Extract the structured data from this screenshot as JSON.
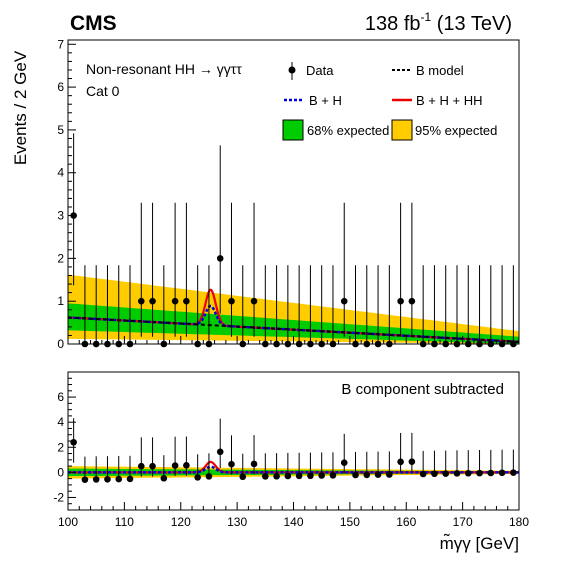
{
  "header": {
    "experiment": "CMS",
    "lumi_value": "138 fb",
    "lumi_exp": "-1",
    "energy": "(13 TeV)"
  },
  "annotations": {
    "process": "Non-resonant HH → γγττ",
    "category": "Cat 0",
    "lower_panel_label": "B component subtracted"
  },
  "axes": {
    "ylabel_upper": "Events / 2 GeV",
    "xlabel": "m̃γγ [GeV]",
    "xticks": [
      100,
      110,
      120,
      130,
      140,
      150,
      160,
      170,
      180
    ],
    "yticks_upper": [
      0,
      1,
      2,
      3,
      4,
      5,
      6,
      7
    ],
    "yticks_lower": [
      -2,
      0,
      2,
      4,
      6
    ]
  },
  "legend": {
    "data": "Data",
    "b_model": "B model",
    "b_h": "B + H",
    "b_h_hh": "B + H + HH",
    "band68": "68% expected",
    "band95": "95% expected"
  },
  "colors": {
    "band68": "#00cc00",
    "band95": "#ffcc00",
    "b_h": "#0000dd",
    "b_h_hh": "#ee0000",
    "b_model": "#000000",
    "data": "#000000"
  },
  "chart_data": [
    {
      "type": "scatter",
      "panel": "upper",
      "xlim": [
        100,
        180
      ],
      "ylim": [
        0,
        7.1
      ],
      "x": [
        101,
        103,
        105,
        107,
        109,
        111,
        113,
        115,
        117,
        119,
        121,
        123,
        125,
        127,
        129,
        131,
        133,
        135,
        137,
        139,
        141,
        143,
        145,
        147,
        149,
        151,
        153,
        155,
        157,
        159,
        161,
        163,
        165,
        167,
        169,
        171,
        173,
        175,
        177,
        179
      ],
      "data": [
        3,
        0,
        0,
        0,
        0,
        0,
        1,
        1,
        0,
        1,
        1,
        0,
        0,
        2,
        1,
        0,
        1,
        0,
        0,
        0,
        0,
        0,
        0,
        0,
        1,
        0,
        0,
        0,
        0,
        1,
        1,
        0,
        0,
        0,
        0,
        0,
        0,
        0,
        0,
        0
      ],
      "err_up": [
        1.92,
        1.84,
        1.84,
        1.84,
        1.84,
        1.84,
        2.3,
        2.3,
        1.84,
        2.3,
        2.3,
        1.84,
        1.84,
        2.64,
        2.3,
        1.84,
        2.3,
        1.84,
        1.84,
        1.84,
        1.84,
        1.84,
        1.84,
        1.84,
        2.3,
        1.84,
        1.84,
        1.84,
        1.84,
        2.3,
        2.3,
        1.84,
        1.84,
        1.84,
        1.84,
        1.84,
        1.84,
        1.84,
        1.84,
        1.84
      ],
      "err_down": [
        1.63,
        0,
        0,
        0,
        0,
        0,
        0.83,
        0.83,
        0,
        0.83,
        0.83,
        0,
        0,
        1.29,
        0.83,
        0,
        0.83,
        0,
        0,
        0,
        0,
        0,
        0,
        0,
        0.83,
        0,
        0,
        0,
        0,
        0.83,
        0.83,
        0,
        0,
        0,
        0,
        0,
        0,
        0,
        0,
        0
      ],
      "b_model": {
        "x": [
          100,
          180
        ],
        "y": [
          0.62,
          0.05
        ]
      },
      "b_h_peak": {
        "x": 125.3,
        "height": 0.45,
        "width": 0.9
      },
      "hh_peak": {
        "x": 125.3,
        "height": 0.38,
        "width": 0.9
      },
      "band68": {
        "x": [
          100,
          180
        ],
        "lo": [
          0.32,
          0.0
        ],
        "hi": [
          0.95,
          0.17
        ]
      },
      "band95": {
        "x": [
          100,
          180
        ],
        "lo": [
          0.12,
          0.0
        ],
        "hi": [
          1.62,
          0.3
        ]
      }
    },
    {
      "type": "scatter",
      "panel": "lower",
      "xlim": [
        100,
        180
      ],
      "ylim": [
        -3,
        8
      ],
      "x": [
        101,
        103,
        105,
        107,
        109,
        111,
        113,
        115,
        117,
        119,
        121,
        123,
        125,
        127,
        129,
        131,
        133,
        135,
        137,
        139,
        141,
        143,
        145,
        147,
        149,
        151,
        153,
        155,
        157,
        159,
        161,
        163,
        165,
        167,
        169,
        171,
        173,
        175,
        177,
        179
      ],
      "values": [
        2.4,
        -0.58,
        -0.56,
        -0.55,
        -0.53,
        -0.52,
        0.49,
        0.49,
        -0.47,
        0.54,
        0.56,
        -0.4,
        -0.32,
        1.64,
        0.65,
        -0.35,
        0.67,
        -0.32,
        -0.31,
        -0.29,
        -0.28,
        -0.27,
        -0.25,
        -0.24,
        0.77,
        -0.21,
        -0.2,
        -0.18,
        -0.17,
        0.84,
        0.85,
        -0.13,
        -0.11,
        -0.1,
        -0.08,
        -0.07,
        -0.06,
        -0.05,
        -0.03,
        -0.02
      ],
      "err_up": [
        1.92,
        1.84,
        1.84,
        1.84,
        1.84,
        1.84,
        2.3,
        2.3,
        1.84,
        2.3,
        2.3,
        1.84,
        1.84,
        2.64,
        2.3,
        1.84,
        2.3,
        1.84,
        1.84,
        1.84,
        1.84,
        1.84,
        1.84,
        1.84,
        2.3,
        1.84,
        1.84,
        1.84,
        1.84,
        2.3,
        2.3,
        1.84,
        1.84,
        1.84,
        1.84,
        1.84,
        1.84,
        1.84,
        1.84,
        1.84
      ],
      "err_down": [
        1.63,
        0,
        0,
        0,
        0,
        0,
        0.83,
        0.83,
        0,
        0.83,
        0.83,
        0,
        0,
        1.29,
        0.83,
        0,
        0.83,
        0,
        0,
        0,
        0,
        0,
        0,
        0,
        0.83,
        0,
        0,
        0,
        0,
        0.83,
        0.83,
        0,
        0,
        0,
        0,
        0,
        0,
        0,
        0,
        0
      ],
      "band68": {
        "x": [
          100,
          180
        ],
        "half": [
          0.3,
          0.06
        ]
      },
      "band95": {
        "x": [
          100,
          180
        ],
        "half": [
          0.5,
          0.12
        ]
      }
    }
  ]
}
